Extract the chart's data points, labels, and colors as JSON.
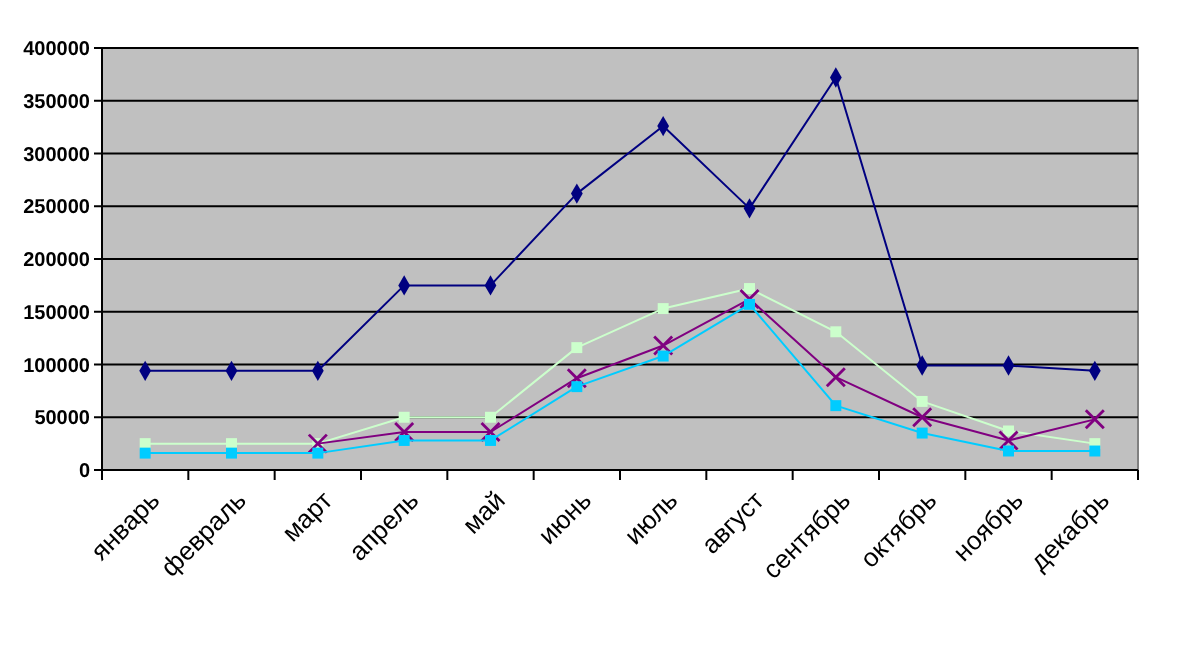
{
  "chart_data": {
    "type": "line",
    "categories": [
      "январь",
      "февраль",
      "март",
      "апрель",
      "май",
      "июнь",
      "июль",
      "август",
      "сентябрь",
      "октябрь",
      "ноябрь",
      "декабрь"
    ],
    "series": [
      {
        "color": "#000080",
        "marker": "diamond",
        "values": [
          94000,
          94000,
          94000,
          175000,
          175000,
          262000,
          326000,
          248000,
          372000,
          99000,
          99000,
          94000
        ]
      },
      {
        "color": "#ccffcc",
        "marker": "square",
        "values": [
          25000,
          25000,
          25000,
          50000,
          50000,
          116000,
          153000,
          172000,
          131000,
          65000,
          37000,
          25000
        ]
      },
      {
        "color": "#800080",
        "marker": "cross",
        "values": [
          null,
          null,
          25000,
          36000,
          36000,
          87000,
          118000,
          162000,
          88000,
          50000,
          28000,
          48000
        ]
      },
      {
        "color": "#00ccff",
        "marker": "square",
        "values": [
          16000,
          16000,
          16000,
          28000,
          28000,
          79000,
          108000,
          157000,
          61000,
          35000,
          18000,
          18000
        ]
      }
    ],
    "ylim": [
      0,
      400000
    ],
    "yticks": [
      0,
      50000,
      100000,
      150000,
      200000,
      250000,
      300000,
      350000,
      400000
    ],
    "grid": "y"
  }
}
